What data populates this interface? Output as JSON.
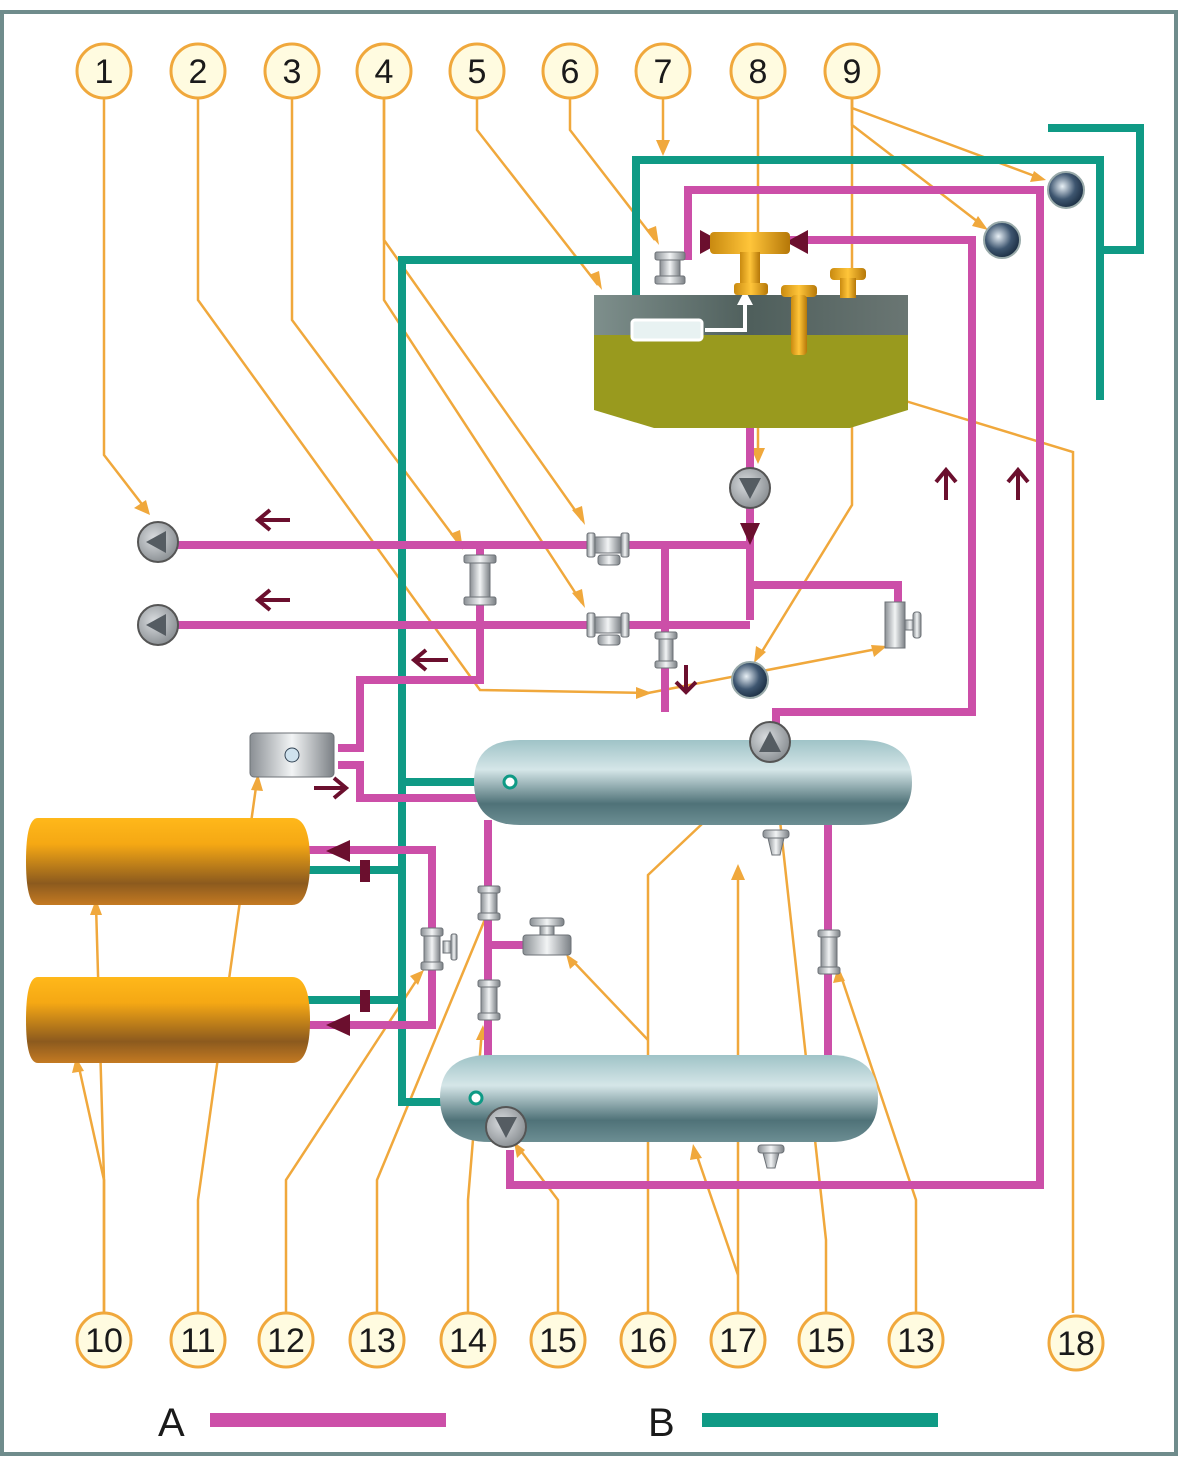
{
  "colors": {
    "line_a": "#cc4fa8",
    "line_b": "#0f9a85",
    "callout": "#f0a83c",
    "badge_fill": "#fffbe0",
    "arrow": "#6b0f2e",
    "frame": "#6f8c8c"
  },
  "top_labels": [
    "1",
    "2",
    "3",
    "4",
    "5",
    "6",
    "7",
    "8",
    "9"
  ],
  "bottom_labels": [
    "10",
    "11",
    "12",
    "13",
    "14",
    "15",
    "16",
    "17",
    "15",
    "13",
    "18"
  ],
  "legend": [
    {
      "key": "A",
      "color": "#cc4fa8"
    },
    {
      "key": "B",
      "color": "#0f9a85"
    }
  ],
  "components": {
    "pumps": [
      "pump-left-upper",
      "pump-left-lower",
      "pump-below-tank",
      "pump-on-upper-vessel",
      "pump-on-lower-vessel"
    ],
    "gauges": [
      "gauge-top-right",
      "gauge-mid-right",
      "gauge-center"
    ],
    "vessels": [
      "upper-vessel",
      "lower-vessel"
    ],
    "cylinders": [
      "yellow-cylinder-upper",
      "yellow-cylinder-lower"
    ]
  }
}
